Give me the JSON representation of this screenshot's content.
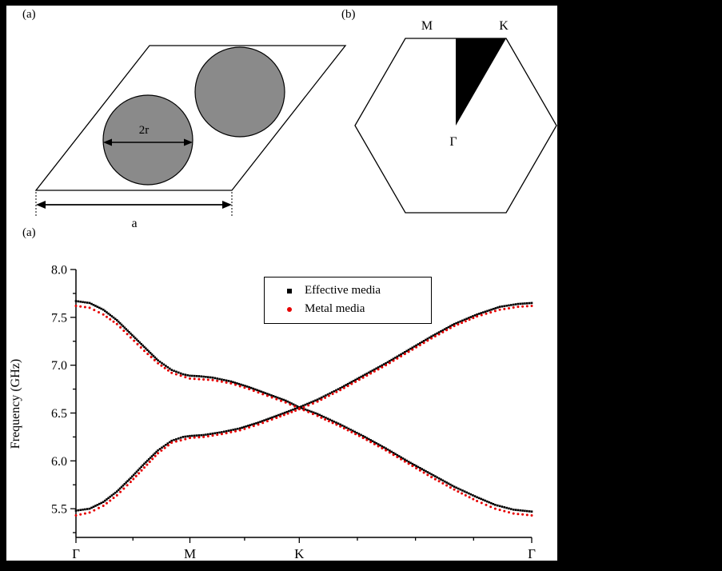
{
  "figure": {
    "top_left_panel": {
      "label": "(a)",
      "diameter_label": "2r",
      "lattice_constant_label": "a"
    },
    "top_right_panel": {
      "label": "(b)",
      "m_point": "M",
      "k_point": "K",
      "gamma_point": "Γ"
    },
    "chart_panel": {
      "label": "(a)"
    }
  },
  "colors": {
    "cylinder_fill": "#8a8a8a",
    "wedge_fill": "#000000",
    "effective_media": "#000000",
    "metal_media": "#e60000"
  },
  "chart_data": {
    "type": "scatter",
    "title": "",
    "xlabel": "",
    "ylabel": "Frequency (GHz)",
    "ylim": [
      5.2,
      8.0
    ],
    "y_ticks": [
      5.5,
      6.0,
      6.5,
      7.0,
      7.5,
      8.0
    ],
    "y_minor_step": 0.25,
    "x_path": "Γ-M-K-Γ",
    "x_ticks": [
      {
        "label": "Γ",
        "pos": 0
      },
      {
        "label": "M",
        "pos": 0.25
      },
      {
        "label": "K",
        "pos": 0.49
      },
      {
        "label": "Γ",
        "pos": 1
      }
    ],
    "x_minor_ticks": [
      0.125,
      0.37,
      0.6175,
      0.745,
      0.8725
    ],
    "legend_position": "top-center",
    "grid": false,
    "series": [
      {
        "name": "Effective media",
        "color": "#000000",
        "marker": "square",
        "size": 2.6,
        "spacing": 2.8,
        "branches": [
          {
            "x": [
              0,
              0.03,
              0.06,
              0.09,
              0.12,
              0.15,
              0.18,
              0.21,
              0.235,
              0.25,
              0.27,
              0.3,
              0.34,
              0.38,
              0.42,
              0.46,
              0.49,
              0.53,
              0.58,
              0.63,
              0.68,
              0.73,
              0.78,
              0.83,
              0.88,
              0.92,
              0.96,
              1.0
            ],
            "y": [
              7.67,
              7.65,
              7.58,
              7.47,
              7.33,
              7.19,
              7.05,
              6.95,
              6.905,
              6.89,
              6.885,
              6.87,
              6.83,
              6.77,
              6.7,
              6.63,
              6.56,
              6.49,
              6.38,
              6.26,
              6.13,
              5.99,
              5.86,
              5.73,
              5.62,
              5.54,
              5.49,
              5.47
            ]
          },
          {
            "x": [
              0,
              0.03,
              0.06,
              0.09,
              0.12,
              0.15,
              0.18,
              0.21,
              0.235,
              0.25,
              0.28,
              0.32,
              0.36,
              0.4,
              0.44,
              0.49,
              0.53,
              0.58,
              0.63,
              0.68,
              0.73,
              0.78,
              0.83,
              0.88,
              0.93,
              0.97,
              1.0
            ],
            "y": [
              5.48,
              5.5,
              5.57,
              5.68,
              5.82,
              5.97,
              6.11,
              6.21,
              6.25,
              6.26,
              6.27,
              6.3,
              6.34,
              6.4,
              6.47,
              6.56,
              6.64,
              6.76,
              6.89,
              7.02,
              7.16,
              7.3,
              7.43,
              7.53,
              7.61,
              7.64,
              7.65
            ]
          }
        ]
      },
      {
        "name": "Metal media",
        "color": "#e60000",
        "marker": "circle",
        "size": 3.0,
        "spacing": 5.5,
        "branches": [
          {
            "x": [
              0,
              0.03,
              0.06,
              0.09,
              0.12,
              0.15,
              0.18,
              0.21,
              0.25,
              0.3,
              0.34,
              0.38,
              0.42,
              0.46,
              0.49,
              0.53,
              0.58,
              0.63,
              0.68,
              0.73,
              0.78,
              0.83,
              0.88,
              0.92,
              0.96,
              1.0
            ],
            "y": [
              7.62,
              7.6,
              7.53,
              7.43,
              7.29,
              7.15,
              7.02,
              6.92,
              6.86,
              6.845,
              6.81,
              6.75,
              6.68,
              6.61,
              6.55,
              6.47,
              6.36,
              6.24,
              6.11,
              5.97,
              5.83,
              5.7,
              5.58,
              5.5,
              5.45,
              5.43
            ]
          },
          {
            "x": [
              0,
              0.03,
              0.06,
              0.09,
              0.12,
              0.15,
              0.18,
              0.21,
              0.25,
              0.28,
              0.32,
              0.36,
              0.4,
              0.44,
              0.49,
              0.53,
              0.58,
              0.63,
              0.68,
              0.73,
              0.78,
              0.83,
              0.88,
              0.93,
              0.97,
              1.0
            ],
            "y": [
              5.43,
              5.46,
              5.53,
              5.64,
              5.78,
              5.93,
              6.08,
              6.19,
              6.24,
              6.25,
              6.28,
              6.32,
              6.38,
              6.45,
              6.54,
              6.62,
              6.74,
              6.87,
              7.0,
              7.14,
              7.28,
              7.41,
              7.51,
              7.58,
              7.61,
              7.62
            ]
          }
        ]
      }
    ]
  }
}
